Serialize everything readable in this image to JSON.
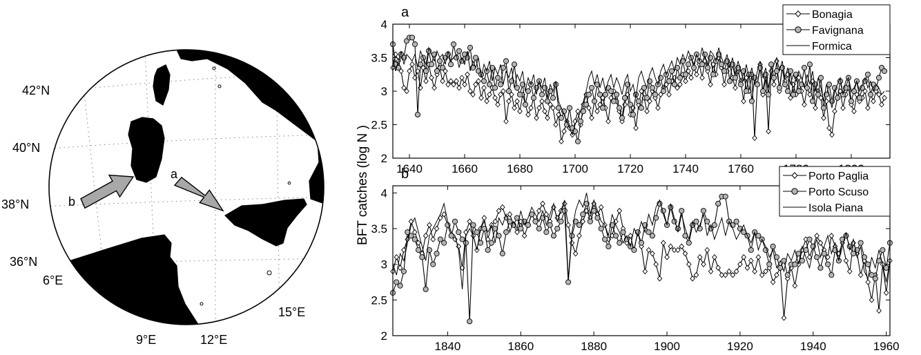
{
  "figure": {
    "shared_ylabel": "BFT catches (log N )"
  },
  "map": {
    "lat_labels": [
      "42°N",
      "40°N",
      "38°N",
      "36°N"
    ],
    "lon_labels": [
      "6°E",
      "9°E",
      "12°E",
      "15°E"
    ],
    "arrow_a_label": "a",
    "arrow_b_label": "b",
    "colors": {
      "land": "#d4d4d4",
      "arrow": "#a8a8a8",
      "grid": "#808080"
    }
  },
  "chart_data": [
    {
      "panel": "a",
      "type": "line",
      "title": "a",
      "xlabel": "",
      "ylabel": "BFT catches (log N )",
      "xlim": [
        1634,
        1814
      ],
      "ylim": [
        2,
        4
      ],
      "xticks": [
        1640,
        1660,
        1680,
        1700,
        1720,
        1740,
        1760,
        1780,
        1800
      ],
      "yticks": [
        2,
        2.5,
        3,
        3.5,
        4
      ],
      "grid": false,
      "legend_position": "top-right",
      "series": [
        {
          "name": "Bonagia",
          "marker": "diamond",
          "x_start": 1634,
          "values": [
            3.35,
            3.55,
            3.45,
            3.3,
            3.05,
            3.0,
            3.3,
            3.4,
            3.2,
            3.3,
            3.05,
            3.35,
            3.15,
            3.4,
            3.2,
            3.05,
            3.25,
            3.35,
            3.15,
            3.3,
            3.1,
            3.15,
            3.1,
            3.15,
            3.05,
            3.2,
            3.1,
            3.25,
            3.0,
            2.95,
            3.1,
            3.15,
            2.9,
            3.05,
            2.85,
            2.95,
            3.05,
            2.9,
            2.8,
            2.95,
            3.0,
            2.55,
            2.85,
            2.95,
            2.75,
            2.85,
            2.7,
            2.95,
            2.8,
            2.65,
            2.75,
            2.9,
            2.6,
            2.75,
            2.85,
            2.7,
            2.6,
            2.8,
            2.75,
            2.5,
            2.65,
            2.25,
            2.4,
            2.55,
            2.45,
            2.35,
            2.55,
            2.7,
            2.5,
            2.8,
            2.95,
            2.75,
            2.6,
            2.85,
            2.7,
            2.8,
            2.9,
            2.75,
            2.55,
            2.9,
            3.0,
            2.85,
            2.7,
            2.55,
            2.8,
            2.95,
            2.65,
            2.75,
            2.45,
            2.8,
            3.0,
            2.9,
            2.7,
            2.85,
            3.0,
            2.9,
            2.75,
            2.95,
            3.05,
            3.1,
            2.95,
            3.15,
            3.2,
            3.05,
            3.1,
            3.25,
            3.15,
            3.3,
            3.2,
            3.35,
            3.25,
            3.4,
            3.2,
            3.45,
            3.3,
            3.1,
            3.4,
            3.25,
            3.5,
            3.35,
            3.1,
            3.3,
            3.4,
            3.2,
            3.05,
            3.3,
            3.15,
            2.85,
            3.2,
            3.0,
            3.25,
            2.3,
            3.1,
            3.4,
            2.95,
            3.2,
            2.4,
            3.3,
            3.1,
            3.45,
            3.0,
            3.35,
            3.15,
            3.25,
            2.9,
            3.1,
            2.95,
            3.2,
            3.0,
            2.8,
            3.05,
            2.95,
            3.15,
            2.75,
            3.0,
            2.9,
            2.6,
            2.85,
            2.45,
            2.35,
            2.7,
            2.9,
            3.0,
            2.75,
            2.95,
            3.05,
            2.8,
            2.7,
            2.95,
            2.85,
            2.9,
            3.0,
            2.75,
            2.95,
            2.85,
            3.0,
            2.95,
            2.8,
            2.9
          ]
        },
        {
          "name": "Favignana",
          "marker": "circle",
          "x_start": 1634,
          "values": [
            3.7,
            3.4,
            3.35,
            3.55,
            3.5,
            3.75,
            3.8,
            3.8,
            3.7,
            2.65,
            3.4,
            3.5,
            3.3,
            3.6,
            3.4,
            3.55,
            3.3,
            3.45,
            3.35,
            3.5,
            3.55,
            3.4,
            3.7,
            3.5,
            3.6,
            3.45,
            3.55,
            3.5,
            3.65,
            3.35,
            3.5,
            3.3,
            3.25,
            3.15,
            3.3,
            3.1,
            3.35,
            3.05,
            3.2,
            3.1,
            3.35,
            3.45,
            3.0,
            3.15,
            3.4,
            3.05,
            2.95,
            3.1,
            2.8,
            3.0,
            3.1,
            2.9,
            3.05,
            3.15,
            2.95,
            3.05,
            2.85,
            3.0,
            2.9,
            3.1,
            2.75,
            2.6,
            2.7,
            2.5,
            2.75,
            2.45,
            2.4,
            2.25,
            2.55,
            2.7,
            2.8,
            2.95,
            3.05,
            2.85,
            3.1,
            2.95,
            2.75,
            2.95,
            3.05,
            3.0,
            2.85,
            2.95,
            2.75,
            2.6,
            2.9,
            3.1,
            2.8,
            2.65,
            2.95,
            2.85,
            2.75,
            3.05,
            2.9,
            3.15,
            3.05,
            2.95,
            3.1,
            3.2,
            3.0,
            3.25,
            3.15,
            3.3,
            3.1,
            3.35,
            3.2,
            3.45,
            3.25,
            3.4,
            3.5,
            3.35,
            3.55,
            3.45,
            3.4,
            3.55,
            3.35,
            3.5,
            3.25,
            3.45,
            3.55,
            3.4,
            3.3,
            3.45,
            3.15,
            3.4,
            3.2,
            3.35,
            3.1,
            3.3,
            3.0,
            3.25,
            2.85,
            3.2,
            3.1,
            3.35,
            3.0,
            3.25,
            2.95,
            3.4,
            3.2,
            3.3,
            3.05,
            3.35,
            3.1,
            3.0,
            3.3,
            2.95,
            3.25,
            3.0,
            3.1,
            3.35,
            3.05,
            3.4,
            2.85,
            3.1,
            2.95,
            3.2,
            2.75,
            2.95,
            3.1,
            2.85,
            3.05,
            2.9,
            3.15,
            2.95,
            3.05,
            3.2,
            2.85,
            3.0,
            3.15,
            2.9,
            3.05,
            3.15,
            3.25,
            2.95,
            3.1,
            3.05,
            3.2,
            3.35,
            3.3
          ]
        },
        {
          "name": "Formica",
          "marker": "none",
          "x_start": 1634,
          "values": [
            3.5,
            3.3,
            3.45,
            3.6,
            3.4,
            3.55,
            3.5,
            3.45,
            3.55,
            3.35,
            3.6,
            3.5,
            3.4,
            3.65,
            3.55,
            3.45,
            3.6,
            3.5,
            3.55,
            3.4,
            3.6,
            3.45,
            3.5,
            3.55,
            3.35,
            3.5,
            3.4,
            3.6,
            3.3,
            3.45,
            3.35,
            3.5,
            3.2,
            3.4,
            3.3,
            3.45,
            3.15,
            3.35,
            3.25,
            3.4,
            3.1,
            3.3,
            3.2,
            3.35,
            3.05,
            3.25,
            3.15,
            3.3,
            3.0,
            3.2,
            3.1,
            3.25,
            2.95,
            3.15,
            3.05,
            3.2,
            2.9,
            3.1,
            3.0,
            3.15,
            2.85,
            2.75,
            2.65,
            2.55,
            2.45,
            2.35,
            2.5,
            2.6,
            2.7,
            2.85,
            3.0,
            3.2,
            3.3,
            3.1,
            3.25,
            3.05,
            3.2,
            3.0,
            3.15,
            3.25,
            3.05,
            3.2,
            3.1,
            2.95,
            3.15,
            3.25,
            3.0,
            3.1,
            2.9,
            3.2,
            3.3,
            3.15,
            3.05,
            3.25,
            3.35,
            3.2,
            3.1,
            3.3,
            3.4,
            3.25,
            3.35,
            3.45,
            3.3,
            3.5,
            3.4,
            3.55,
            3.45,
            3.6,
            3.5,
            3.4,
            3.55,
            3.45,
            3.65,
            3.5,
            3.4,
            3.6,
            3.55,
            3.45,
            3.65,
            3.5,
            3.4,
            3.55,
            3.35,
            3.5,
            3.25,
            3.45,
            3.3,
            3.15,
            3.4,
            3.2,
            3.35,
            3.1,
            3.3,
            3.45,
            3.2,
            3.35,
            3.05,
            3.25,
            3.4,
            3.5,
            3.3,
            3.45,
            3.2,
            3.35,
            3.1,
            3.25,
            3.15,
            3.3,
            3.2,
            3.05,
            3.25,
            3.1,
            3.3,
            3.0,
            3.2,
            3.05,
            2.85,
            3.1,
            2.95,
            2.75,
            3.0,
            3.1,
            3.2,
            2.95,
            3.15,
            3.2,
            3.0,
            3.05,
            3.15,
            3.0,
            3.1,
            3.2,
            3.05,
            3.15,
            3.0,
            3.1,
            3.05,
            2.95,
            3.0
          ]
        }
      ]
    },
    {
      "panel": "b",
      "type": "line",
      "title": "b",
      "xlabel": "",
      "ylabel": "BFT catches (log N )",
      "xlim": [
        1825,
        1961
      ],
      "ylim": [
        2,
        4.1
      ],
      "xticks": [
        1840,
        1860,
        1880,
        1900,
        1920,
        1940,
        1960
      ],
      "yticks": [
        2,
        2.5,
        3,
        3.5,
        4
      ],
      "grid": false,
      "legend_position": "top-right",
      "series": [
        {
          "name": "Porto Paglia",
          "marker": "diamond",
          "x_start": 1825,
          "values": [
            2.9,
            3.1,
            2.95,
            3.2,
            3.35,
            3.6,
            3.45,
            3.3,
            3.15,
            3.4,
            3.55,
            3.35,
            3.5,
            3.65,
            3.7,
            3.55,
            3.4,
            3.35,
            3.25,
            2.95,
            3.45,
            3.6,
            3.4,
            3.2,
            3.5,
            3.65,
            3.35,
            3.55,
            3.6,
            3.75,
            3.8,
            3.65,
            3.7,
            3.55,
            3.45,
            3.6,
            3.4,
            3.55,
            3.7,
            3.6,
            3.75,
            3.85,
            3.7,
            3.6,
            3.8,
            3.65,
            3.75,
            3.85,
            3.55,
            3.3,
            3.15,
            3.4,
            3.6,
            3.75,
            3.65,
            3.85,
            3.7,
            3.8,
            3.55,
            3.35,
            3.4,
            3.6,
            3.75,
            3.5,
            3.3,
            3.4,
            3.2,
            3.45,
            3.25,
            2.9,
            3.2,
            3.15,
            3.0,
            2.8,
            3.3,
            3.1,
            3.25,
            3.2,
            3.2,
            3.25,
            3.15,
            3.0,
            2.8,
            2.85,
            3.1,
            3.0,
            3.2,
            2.9,
            3.1,
            2.95,
            2.85,
            2.85,
            2.9,
            2.85,
            2.9,
            3.0,
            3.1,
            2.95,
            3.05,
            2.9,
            3.1,
            2.85,
            2.9,
            2.95,
            2.75,
            2.85,
            2.95,
            2.25,
            2.8,
            2.95,
            2.7,
            3.0,
            3.2,
            3.35,
            3.1,
            3.25,
            3.4,
            3.3,
            3.2,
            3.1,
            3.4,
            3.25,
            3.15,
            3.3,
            3.05,
            2.9,
            3.3,
            3.15,
            2.85,
            3.05,
            2.75,
            2.5,
            2.85,
            2.35,
            3.0,
            2.6,
            3.05
          ]
        },
        {
          "name": "Porto Scuso",
          "marker": "circle",
          "x_start": 1825,
          "values": [
            2.6,
            2.75,
            2.7,
            2.9,
            3.45,
            3.4,
            3.35,
            3.2,
            3.1,
            2.65,
            3.2,
            3.0,
            3.15,
            3.35,
            3.3,
            3.55,
            3.4,
            3.6,
            3.45,
            3.35,
            3.3,
            2.2,
            3.55,
            3.45,
            3.3,
            3.5,
            3.2,
            3.3,
            3.5,
            3.4,
            3.15,
            3.45,
            3.6,
            3.55,
            3.65,
            3.5,
            3.6,
            3.55,
            3.7,
            3.6,
            3.5,
            3.65,
            3.45,
            3.55,
            3.4,
            3.5,
            3.6,
            3.75,
            2.75,
            3.4,
            3.6,
            3.55,
            3.7,
            3.85,
            3.6,
            3.75,
            3.65,
            3.5,
            3.35,
            3.25,
            3.55,
            3.4,
            3.3,
            3.45,
            3.35,
            3.25,
            3.2,
            3.45,
            3.3,
            3.55,
            3.45,
            3.4,
            3.65,
            3.85,
            3.75,
            3.55,
            3.8,
            3.6,
            3.5,
            3.75,
            3.4,
            3.3,
            3.55,
            3.6,
            3.5,
            3.75,
            3.6,
            3.5,
            3.55,
            3.85,
            3.95,
            3.95,
            3.6,
            3.55,
            3.6,
            3.5,
            3.45,
            3.4,
            3.2,
            3.45,
            3.4,
            3.35,
            3.2,
            3.0,
            3.25,
            3.1,
            2.95,
            3.05,
            2.85,
            3.0,
            3.0,
            3.15,
            3.05,
            3.2,
            3.35,
            3.25,
            3.1,
            2.95,
            3.15,
            3.0,
            2.85,
            3.2,
            3.05,
            3.35,
            3.4,
            3.25,
            3.15,
            3.2,
            3.3,
            3.1,
            3.0,
            2.85,
            2.8,
            3.05,
            3.2,
            2.95,
            3.3
          ]
        },
        {
          "name": "Isola Piana",
          "marker": "none",
          "x_start": 1825,
          "values": [
            3.0,
            2.85,
            3.15,
            3.05,
            3.3,
            3.55,
            3.65,
            3.45,
            3.25,
            3.05,
            3.4,
            3.5,
            3.6,
            3.7,
            3.85,
            3.6,
            3.45,
            3.4,
            3.2,
            2.65,
            3.4,
            3.5,
            3.4,
            3.2,
            3.5,
            3.6,
            3.45,
            3.55,
            3.3,
            3.65,
            3.55,
            3.7,
            3.45,
            3.6,
            3.5,
            3.75,
            3.55,
            3.65,
            3.8,
            3.7,
            3.6,
            3.75,
            3.55,
            3.7,
            3.85,
            3.6,
            3.75,
            3.9,
            2.8,
            3.45,
            3.75,
            3.9,
            3.8,
            4.0,
            3.7,
            3.9,
            3.75,
            3.6,
            3.55,
            3.4,
            3.7,
            3.55,
            3.45,
            3.3,
            3.4,
            3.25,
            3.5,
            3.4,
            3.6,
            3.45,
            3.7,
            3.55,
            3.8,
            3.9,
            3.7,
            3.55,
            3.85,
            3.65,
            3.45,
            3.7,
            3.5,
            3.35,
            3.6,
            3.45,
            3.55,
            3.7,
            3.4,
            3.55,
            3.35,
            3.5,
            3.65,
            3.4,
            3.6,
            3.5,
            3.35,
            3.45,
            3.55,
            3.4,
            3.3,
            3.45,
            3.2,
            3.35,
            3.25,
            3.1,
            3.2,
            2.95,
            3.05,
            2.9,
            3.15,
            3.05,
            3.2,
            3.0,
            3.25,
            3.1,
            2.95,
            3.2,
            3.35,
            3.1,
            3.25,
            3.4,
            3.15,
            3.3,
            3.05,
            3.25,
            3.45,
            3.2,
            3.35,
            3.1,
            3.25,
            2.9,
            2.8,
            3.1,
            2.95,
            3.2,
            3.0,
            2.75,
            3.05
          ]
        }
      ]
    }
  ]
}
